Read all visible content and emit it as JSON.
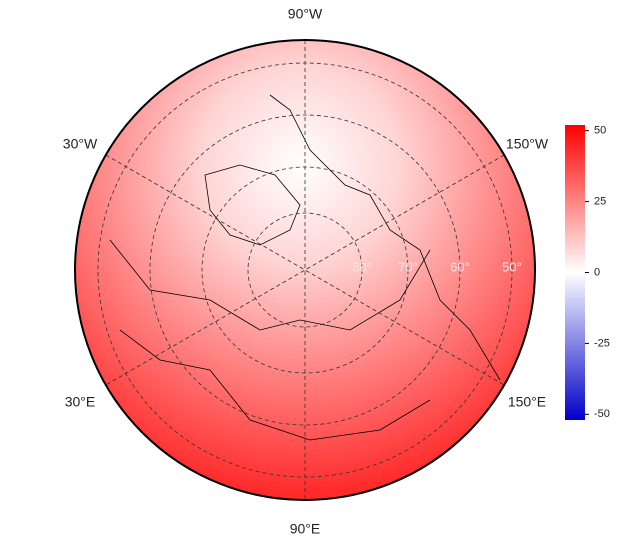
{
  "map": {
    "longitude_labels": [
      "90°W",
      "150°W",
      "30°W",
      "30°E",
      "150°E",
      "90°E"
    ],
    "latitude_labels": [
      "80°",
      "70°",
      "60°",
      "50°"
    ],
    "colorbar": {
      "lim": [
        -52,
        52
      ],
      "ticks": [
        50,
        25,
        0,
        -25,
        -50
      ],
      "colors": [
        "#0000c8",
        "#ffffff",
        "#ff0000"
      ]
    }
  }
}
